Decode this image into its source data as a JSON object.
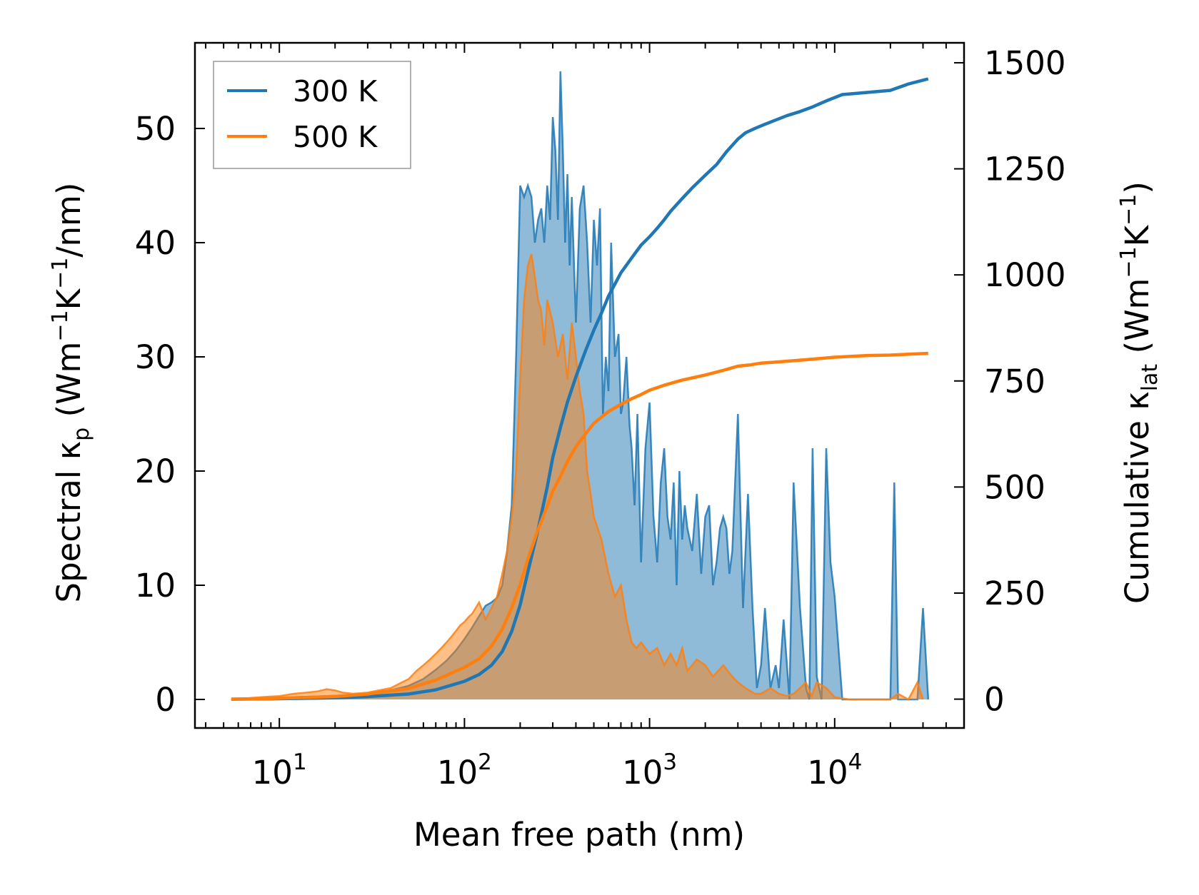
{
  "chart_data": {
    "type": "line",
    "xscale": "log",
    "xlabel": "Mean free path (nm)",
    "ylabel_left": "Spectral κp (Wm−1K−1/nm)",
    "ylabel_right": "Cumulative κlat (Wm−1K−1)",
    "xlim": [
      3.5,
      50000
    ],
    "ylim_left": [
      -2.5,
      57.5
    ],
    "ylim_right": [
      -68,
      1547
    ],
    "xticks": [
      {
        "value": 10,
        "base": "10",
        "exp": "1"
      },
      {
        "value": 100,
        "base": "10",
        "exp": "2"
      },
      {
        "value": 1000,
        "base": "10",
        "exp": "3"
      },
      {
        "value": 10000,
        "base": "10",
        "exp": "4"
      }
    ],
    "yticks_left": [
      "0",
      "10",
      "20",
      "30",
      "40",
      "50"
    ],
    "yticks_right": [
      "0",
      "250",
      "500",
      "750",
      "1000",
      "1250",
      "1500"
    ],
    "legend_position": "top-left",
    "series": [
      {
        "name": "300 K",
        "color": "#1f77b4",
        "spectral_x": [
          5.5,
          8,
          10,
          12,
          15,
          18,
          22,
          30,
          40,
          50,
          60,
          70,
          80,
          90,
          100,
          110,
          120,
          130,
          140,
          150,
          160,
          170,
          180,
          190,
          200,
          210,
          220,
          230,
          240,
          250,
          260,
          270,
          280,
          290,
          300,
          310,
          320,
          330,
          340,
          350,
          360,
          370,
          380,
          400,
          420,
          440,
          460,
          480,
          500,
          520,
          540,
          560,
          580,
          600,
          620,
          650,
          680,
          700,
          720,
          750,
          780,
          800,
          830,
          860,
          900,
          950,
          1000,
          1050,
          1100,
          1150,
          1200,
          1250,
          1300,
          1350,
          1400,
          1450,
          1500,
          1550,
          1600,
          1700,
          1800,
          1900,
          2000,
          2100,
          2200,
          2300,
          2400,
          2500,
          2600,
          2700,
          2800,
          3000,
          3200,
          3400,
          3600,
          3800,
          4000,
          4200,
          4500,
          4800,
          5000,
          5300,
          5700,
          6000,
          6500,
          7000,
          7300,
          7600,
          8000,
          8500,
          9000,
          9500,
          10000,
          11000,
          12000,
          15000,
          20000,
          21000,
          22000,
          25000,
          28000,
          30000,
          32000
        ],
        "spectral_y": [
          0,
          0.05,
          0.1,
          0.2,
          0.25,
          0.3,
          0.35,
          0.5,
          0.8,
          1.2,
          1.8,
          2.6,
          3.4,
          4.3,
          5.3,
          6.3,
          7.3,
          8.2,
          8.5,
          8.9,
          10,
          13,
          17,
          30,
          45,
          44,
          45,
          44,
          40,
          42,
          43,
          40,
          45,
          42,
          51,
          48,
          42,
          55,
          48,
          40,
          46,
          38,
          44,
          33,
          43,
          45,
          40,
          33,
          42,
          38,
          43,
          25,
          30,
          27,
          40,
          30,
          32,
          25,
          26,
          30,
          24,
          22,
          17,
          25,
          12,
          22,
          26,
          16,
          12,
          19,
          22,
          16,
          14,
          19,
          10,
          20,
          14,
          17,
          15,
          13,
          18,
          11,
          16,
          17,
          10,
          12,
          15,
          16,
          15,
          11,
          13,
          25,
          8,
          18,
          8,
          1,
          3,
          8,
          1,
          3,
          1,
          7,
          0,
          19,
          8,
          1,
          0,
          22,
          2,
          0,
          22,
          12,
          9,
          0,
          0,
          0,
          0,
          19,
          0,
          0,
          0,
          8,
          0
        ],
        "cumulative_x": [
          5.5,
          10,
          20,
          30,
          50,
          70,
          100,
          120,
          140,
          160,
          180,
          200,
          220,
          250,
          280,
          300,
          330,
          360,
          400,
          450,
          500,
          550,
          600,
          700,
          800,
          900,
          1000,
          1100,
          1200,
          1300,
          1500,
          1700,
          2000,
          2300,
          2600,
          3000,
          3300,
          3700,
          4200,
          4800,
          5500,
          6500,
          7500,
          9000,
          11000,
          15000,
          20000,
          25000,
          32000
        ],
        "cumulative_y": [
          0,
          1,
          3,
          6,
          12,
          22,
          42,
          58,
          80,
          112,
          160,
          222,
          300,
          400,
          500,
          570,
          640,
          700,
          760,
          820,
          870,
          910,
          950,
          1005,
          1040,
          1070,
          1090,
          1110,
          1130,
          1150,
          1180,
          1205,
          1235,
          1260,
          1290,
          1320,
          1335,
          1345,
          1355,
          1365,
          1375,
          1385,
          1395,
          1410,
          1425,
          1430,
          1435,
          1450,
          1462
        ]
      },
      {
        "name": "500 K",
        "color": "#ff7f0e",
        "spectral_x": [
          5.5,
          8,
          10,
          12,
          14,
          16,
          18,
          20,
          22,
          25,
          30,
          40,
          50,
          55,
          60,
          65,
          70,
          75,
          80,
          85,
          90,
          95,
          100,
          105,
          110,
          120,
          130,
          140,
          150,
          160,
          170,
          180,
          190,
          200,
          210,
          220,
          230,
          240,
          250,
          260,
          270,
          280,
          300,
          320,
          340,
          360,
          380,
          400,
          420,
          440,
          460,
          480,
          500,
          550,
          600,
          650,
          700,
          750,
          800,
          850,
          900,
          1000,
          1100,
          1200,
          1300,
          1400,
          1500,
          1600,
          1800,
          2000,
          2200,
          2500,
          2800,
          3000,
          3300,
          3700,
          4000,
          4500,
          5000,
          5500,
          6000,
          6500,
          7000,
          7500,
          8000,
          9000,
          10000,
          12000,
          20000,
          22000,
          25000,
          28000,
          30000,
          32000
        ],
        "spectral_y": [
          0,
          0.2,
          0.3,
          0.5,
          0.6,
          0.7,
          0.9,
          0.8,
          0.6,
          0.5,
          0.6,
          1.0,
          1.8,
          2.5,
          3.0,
          3.5,
          4.0,
          4.5,
          5.0,
          5.5,
          6.0,
          6.5,
          6.8,
          7.2,
          7.5,
          8.5,
          7.0,
          8.0,
          9.0,
          11,
          13,
          16,
          20,
          28,
          35,
          38,
          39,
          37,
          35,
          34,
          31,
          35,
          33,
          30,
          32,
          28,
          33,
          30,
          27,
          25,
          20,
          18,
          16,
          14,
          11,
          9,
          10,
          7,
          5,
          4.5,
          5,
          4,
          4.5,
          3,
          4,
          3,
          4.5,
          2.5,
          3.5,
          3,
          2,
          3,
          2,
          1.5,
          1,
          0.5,
          0.5,
          1,
          0.5,
          0.3,
          0.5,
          1.0,
          1.5,
          0.3,
          1.5,
          1.0,
          0.2,
          0,
          0,
          0.5,
          0,
          1.5,
          0
        ],
        "cumulative_x": [
          5.5,
          10,
          20,
          30,
          50,
          70,
          100,
          120,
          140,
          160,
          180,
          200,
          220,
          250,
          280,
          300,
          330,
          360,
          400,
          450,
          500,
          550,
          600,
          700,
          800,
          900,
          1000,
          1200,
          1500,
          2000,
          2500,
          3000,
          3500,
          4000,
          5000,
          7000,
          10000,
          15000,
          20000,
          25000,
          32000
        ],
        "cumulative_y": [
          0,
          2,
          6,
          12,
          25,
          45,
          75,
          95,
          125,
          165,
          215,
          270,
          330,
          400,
          455,
          490,
          525,
          560,
          595,
          625,
          650,
          665,
          678,
          695,
          708,
          718,
          728,
          740,
          752,
          764,
          775,
          785,
          788,
          792,
          795,
          800,
          806,
          810,
          811,
          813,
          815
        ]
      }
    ]
  }
}
